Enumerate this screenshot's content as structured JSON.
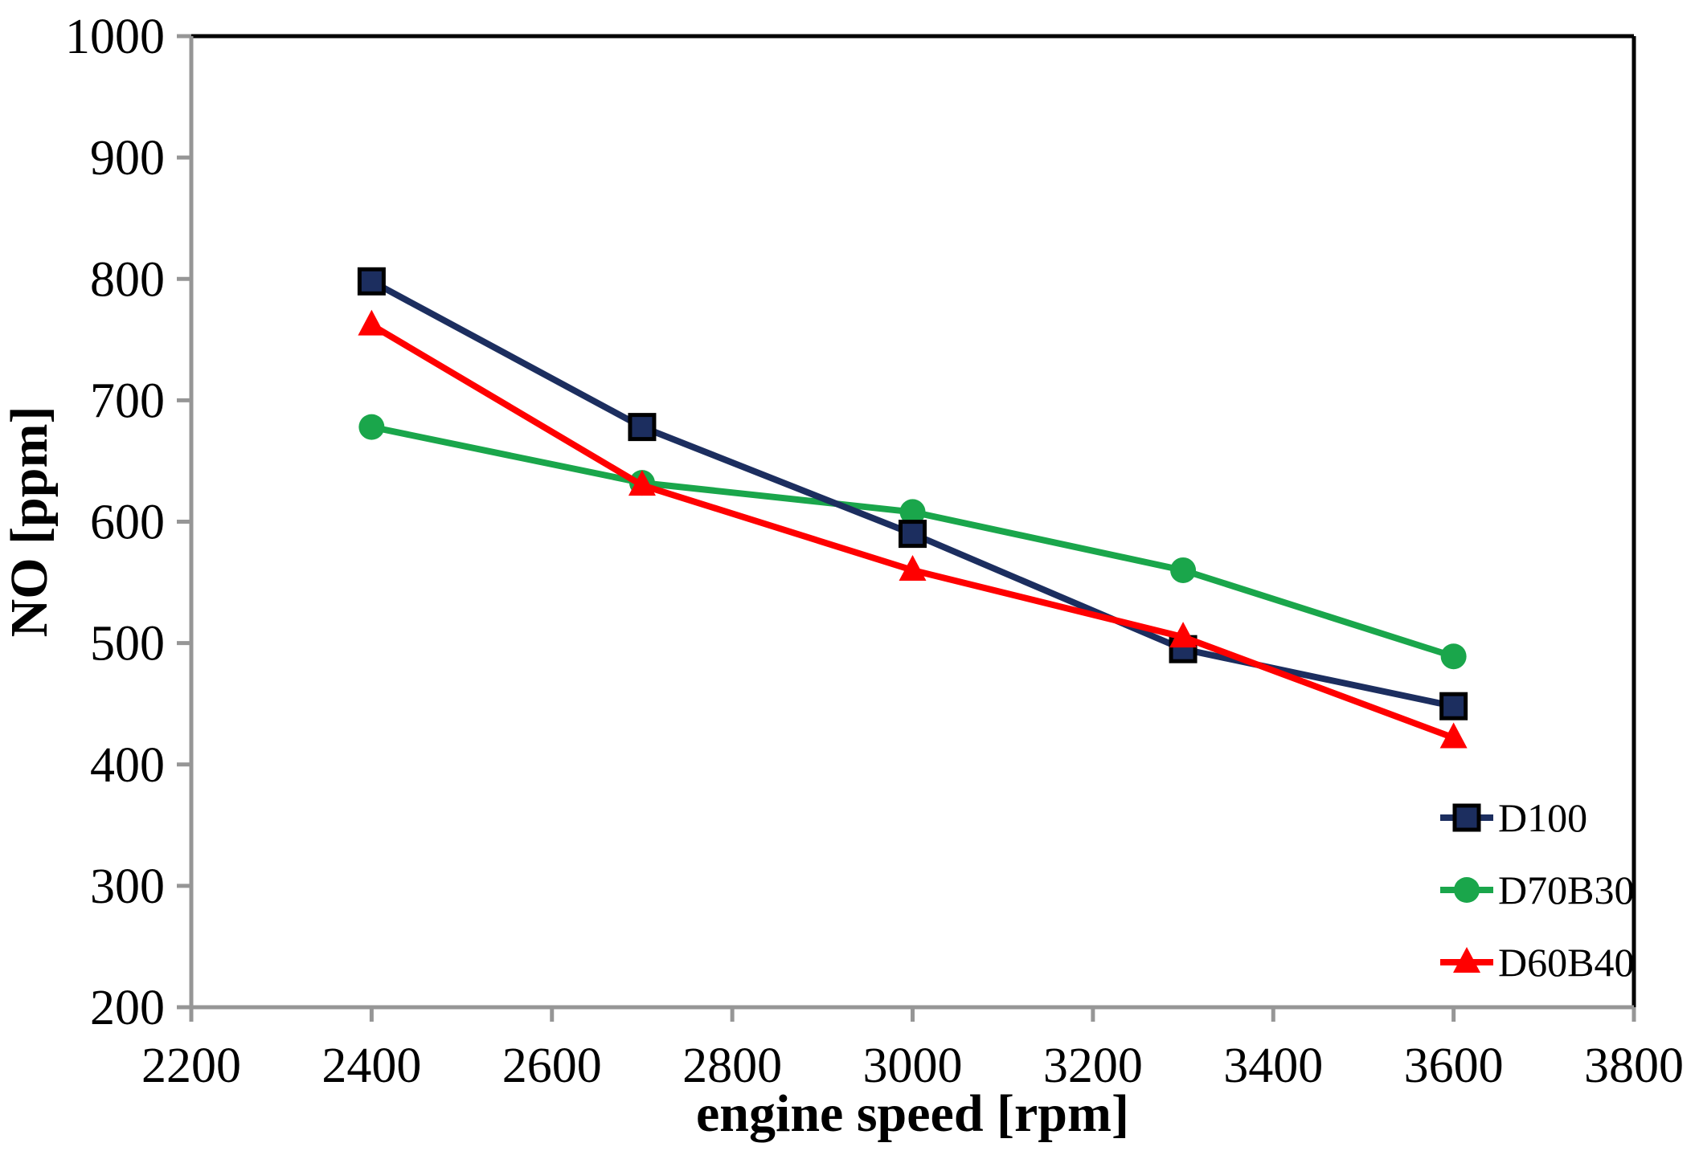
{
  "chart_data": {
    "type": "line",
    "title": "",
    "xlabel": "engine speed [rpm]",
    "ylabel": "NO [ppm]",
    "x": [
      2400,
      2700,
      3000,
      3300,
      3600
    ],
    "xlim": [
      2200,
      3800
    ],
    "ylim": [
      200,
      1000
    ],
    "x_ticks": [
      2200,
      2400,
      2600,
      2800,
      3000,
      3200,
      3400,
      3600,
      3800
    ],
    "y_ticks": [
      200,
      300,
      400,
      500,
      600,
      700,
      800,
      900,
      1000
    ],
    "grid": false,
    "legend_position": "inside-lower-right",
    "legend_entries": [
      "D100",
      "D70B30",
      "D60B40"
    ],
    "series": [
      {
        "name": "D100",
        "marker": "square",
        "color": "#1C2E5F",
        "marker_outline": "#000000",
        "values": [
          798,
          678,
          590,
          495,
          448
        ]
      },
      {
        "name": "D70B30",
        "marker": "circle",
        "color": "#1AA64B",
        "marker_outline": "",
        "values": [
          678,
          632,
          608,
          560,
          489
        ]
      },
      {
        "name": "D60B40",
        "marker": "triangle",
        "color": "#FF0000",
        "marker_outline": "",
        "values": [
          762,
          630,
          560,
          505,
          422
        ]
      }
    ],
    "colors": {
      "axis_line": "#969696",
      "plot_border": "#000000",
      "text": "#000000",
      "background": "#FFFFFF"
    }
  }
}
